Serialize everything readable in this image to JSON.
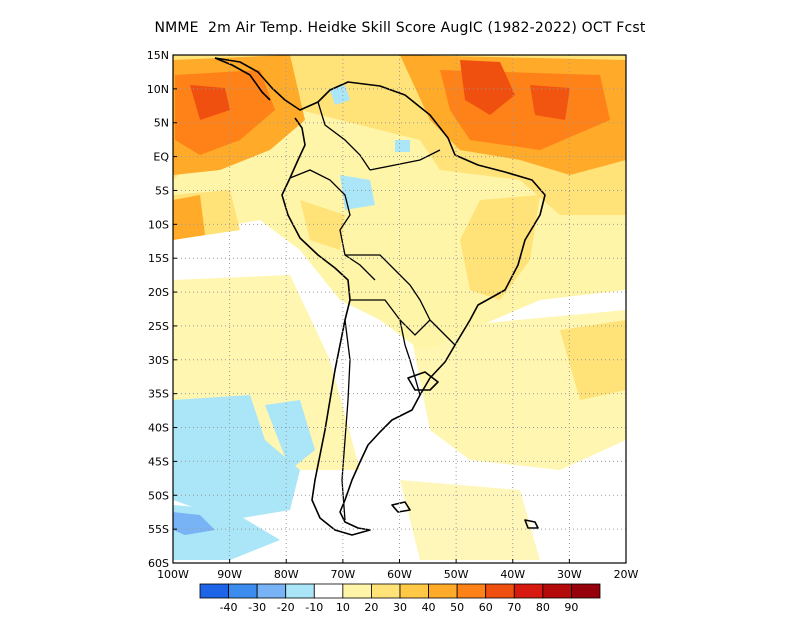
{
  "title": "NMME  2m Air Temp. Heidke Skill Score AugIC (1982-2022) OCT Fcst",
  "map": {
    "lon_range": [
      -100,
      -20
    ],
    "lat_range": [
      -60,
      15
    ],
    "lat_ticks": [
      "15N",
      "10N",
      "5N",
      "EQ",
      "5S",
      "10S",
      "15S",
      "20S",
      "25S",
      "30S",
      "35S",
      "40S",
      "45S",
      "50S",
      "55S",
      "60S"
    ],
    "lon_ticks": [
      "100W",
      "90W",
      "80W",
      "70W",
      "60W",
      "50W",
      "40W",
      "30W",
      "20W"
    ],
    "gridlines": "dotted"
  },
  "colorbar": {
    "colors": [
      "#1e64e6",
      "#3c8cf0",
      "#78b4f5",
      "#aae6f8",
      "#ffffff",
      "#fff5a8",
      "#ffe278",
      "#ffc846",
      "#ffaa28",
      "#ff8218",
      "#f0500f",
      "#d7190f",
      "#b40a0a",
      "#96000a"
    ],
    "labels": [
      "-40",
      "-30",
      "-20",
      "-10",
      "10",
      "20",
      "30",
      "40",
      "50",
      "60",
      "70",
      "80",
      "90"
    ]
  },
  "colors": {
    "coast": "#000000",
    "shade_lightblue": "#aae6f8",
    "shade_blue": "#78b4f5",
    "shade_yellow": "#fff5a8",
    "shade_gold": "#ffe278",
    "shade_orange": "#ffaa28",
    "shade_darkorange": "#ff8218",
    "shade_red": "#f0500f"
  }
}
